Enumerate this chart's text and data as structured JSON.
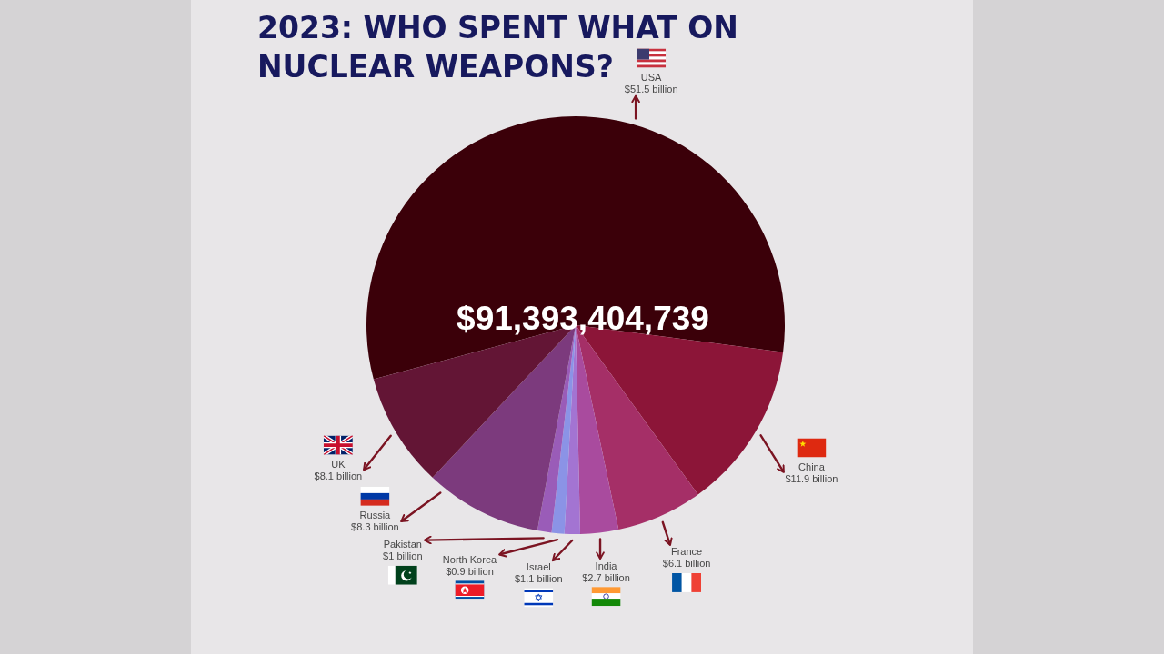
{
  "chart_data": {
    "type": "pie",
    "title": "2023: WHO SPENT WHAT ON NUCLEAR WEAPONS?",
    "categories": [
      "USA",
      "China",
      "France",
      "India",
      "Israel",
      "North Korea",
      "Pakistan",
      "Russia",
      "UK"
    ],
    "values": [
      51.5,
      11.9,
      6.1,
      2.7,
      1.1,
      0.9,
      1,
      8.3,
      8.1
    ],
    "colors": [
      "#3b0009",
      "#8c1538",
      "#a52f67",
      "#a94b9e",
      "#a374d2",
      "#8b93e6",
      "#9a5cb8",
      "#7c3a7d",
      "#631535"
    ],
    "value_labels": [
      "$51.5 billion",
      "$11.9 billion",
      "$6.1 billion",
      "$2.7 billion",
      "$1.1 billion",
      "$0.9 billion",
      "$1 billion",
      "$8.3 billion",
      "$8.1 billion"
    ],
    "annotations": [
      "$91,393,404,739"
    ]
  }
}
